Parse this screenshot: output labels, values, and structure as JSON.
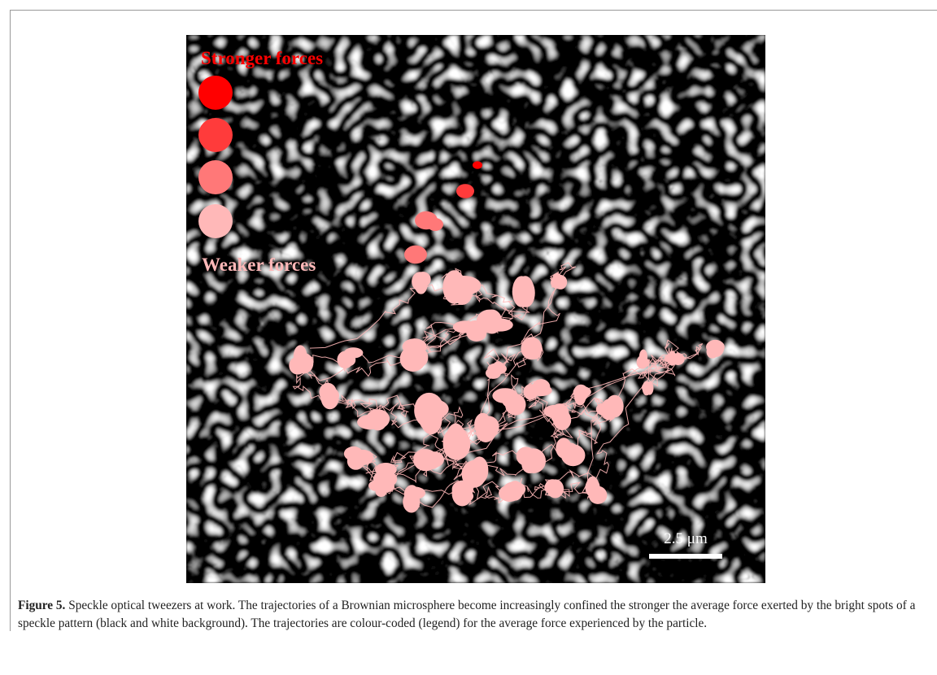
{
  "figure": {
    "legend": {
      "top": "Stronger forces",
      "bottom": "Weaker forces"
    },
    "scale_bar": "2.5 μm"
  },
  "caption": {
    "label": "Figure 5.",
    "text": "Speckle optical tweezers at work. The trajectories of a Brownian microsphere become increasingly confined the stronger the average force exerted by the bright spots of a speckle pattern (black and white background). The trajectories are colour-coded (legend) for the average force experienced by the particle."
  }
}
